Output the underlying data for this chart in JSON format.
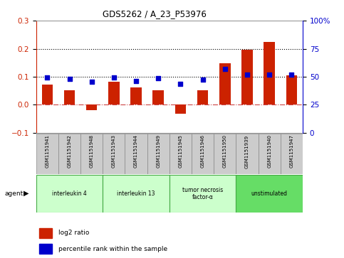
{
  "title": "GDS5262 / A_23_P53976",
  "samples": [
    "GSM1151941",
    "GSM1151942",
    "GSM1151948",
    "GSM1151943",
    "GSM1151944",
    "GSM1151949",
    "GSM1151945",
    "GSM1151946",
    "GSM1151950",
    "GSM1151939",
    "GSM1151940",
    "GSM1151947"
  ],
  "log2_ratio": [
    0.073,
    0.051,
    -0.018,
    0.082,
    0.063,
    0.053,
    -0.032,
    0.053,
    0.148,
    0.196,
    0.223,
    0.105
  ],
  "percentile_left": [
    0.097,
    0.093,
    0.082,
    0.097,
    0.085,
    0.096,
    0.075,
    0.09,
    0.127,
    0.108,
    0.108,
    0.107
  ],
  "groups": [
    {
      "label": "interleukin 4",
      "indices": [
        0,
        1,
        2
      ],
      "color": "#ccffcc"
    },
    {
      "label": "interleukin 13",
      "indices": [
        3,
        4,
        5
      ],
      "color": "#ccffcc"
    },
    {
      "label": "tumor necrosis\nfactor-α",
      "indices": [
        6,
        7,
        8
      ],
      "color": "#ccffcc"
    },
    {
      "label": "unstimulated",
      "indices": [
        9,
        10,
        11
      ],
      "color": "#66dd66"
    }
  ],
  "bar_color": "#cc2200",
  "dot_color": "#0000cc",
  "ylim_left": [
    -0.1,
    0.3
  ],
  "ylim_right": [
    0,
    100
  ],
  "yticks_left": [
    -0.1,
    0.0,
    0.1,
    0.2,
    0.3
  ],
  "yticks_right": [
    0,
    25,
    50,
    75,
    100
  ],
  "hline_zero_color": "#cc4444",
  "background_color": "#ffffff",
  "legend_log2": "log2 ratio",
  "legend_pct": "percentile rank within the sample",
  "agent_label": "agent",
  "bar_width": 0.5,
  "dot_size": 22
}
